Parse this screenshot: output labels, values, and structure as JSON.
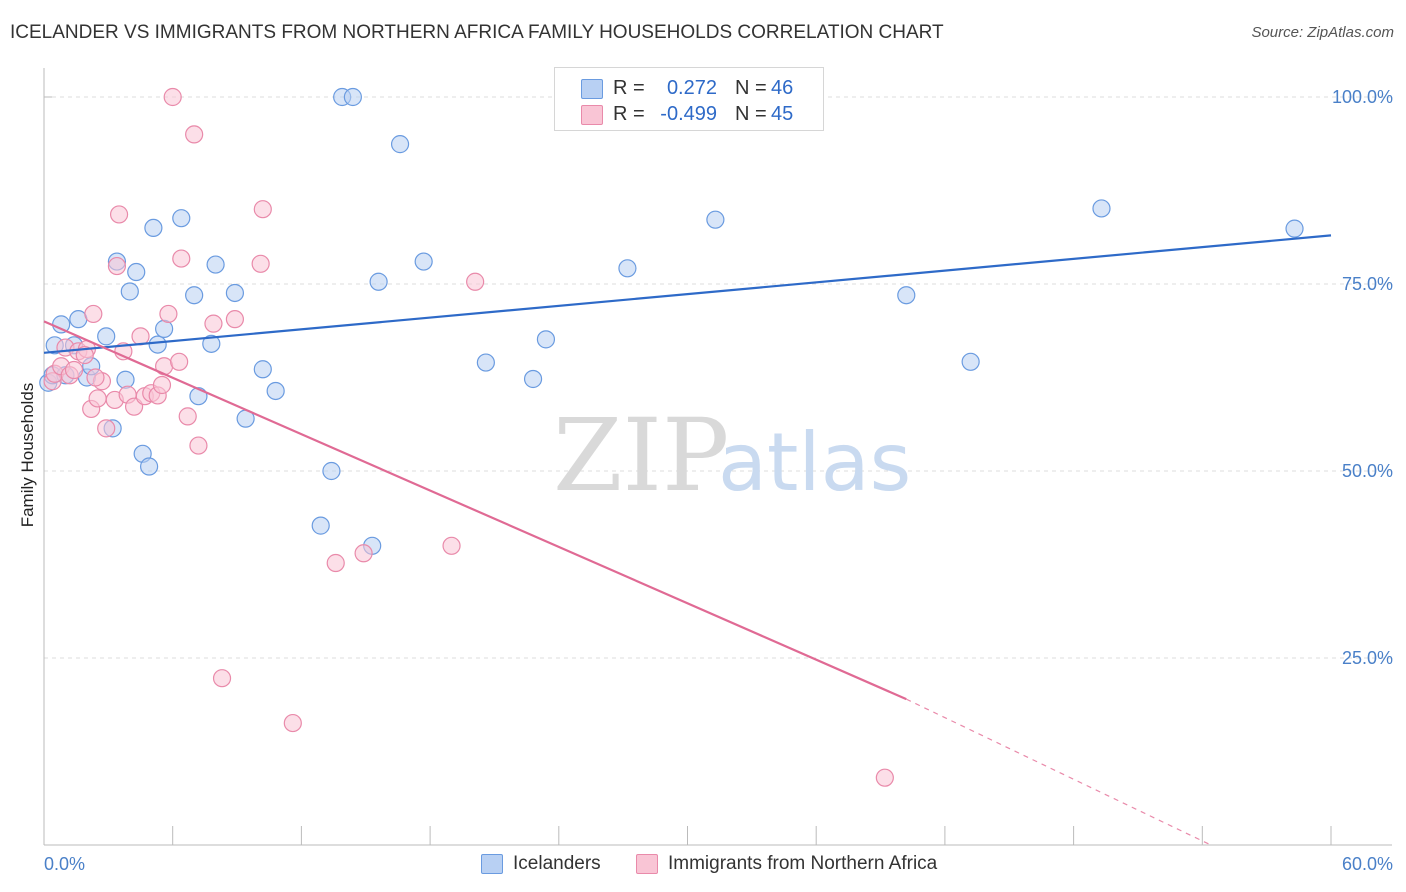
{
  "title": "ICELANDER VS IMMIGRANTS FROM NORTHERN AFRICA FAMILY HOUSEHOLDS CORRELATION CHART",
  "source": "Source: ZipAtlas.com",
  "watermark": {
    "zip": "ZIP",
    "atlas": "atlas"
  },
  "legend": {
    "rows": [
      {
        "r_label": "R =",
        "r_value": "0.272",
        "n_label": "N =",
        "n_value": "46",
        "fill": "#b8d0f3",
        "stroke": "#6a9be0"
      },
      {
        "r_label": "R =",
        "r_value": "-0.499",
        "n_label": "N =",
        "n_value": "45",
        "fill": "#f9c5d5",
        "stroke": "#e98aaa"
      }
    ]
  },
  "bottom_legend": [
    {
      "label": "Icelanders",
      "fill": "#b8d0f3",
      "stroke": "#6a9be0"
    },
    {
      "label": "Immigrants from Northern Africa",
      "fill": "#f9c5d5",
      "stroke": "#e98aaa"
    }
  ],
  "chart_data": {
    "type": "scatter",
    "title": "ICELANDER VS IMMIGRANTS FROM NORTHERN AFRICA FAMILY HOUSEHOLDS CORRELATION CHART",
    "xlabel": "",
    "ylabel": "Family Households",
    "xlim": [
      0,
      60
    ],
    "ylim": [
      0,
      100
    ],
    "x_tick_labels": [
      "0.0%",
      "60.0%"
    ],
    "y_ticks": [
      25,
      50,
      75,
      100
    ],
    "y_tick_labels": [
      "25.0%",
      "50.0%",
      "75.0%",
      "100.0%"
    ],
    "grid": "horizontal dashed",
    "series": [
      {
        "name": "Icelanders",
        "color": "#6a9be0",
        "fill": "#b8d0f3",
        "trend": {
          "x0": 0,
          "y0": 65.8,
          "x1": 60,
          "y1": 81.5
        },
        "points": [
          [
            0.2,
            61.8
          ],
          [
            0.4,
            62.8
          ],
          [
            0.5,
            66.8
          ],
          [
            0.8,
            69.6
          ],
          [
            1.0,
            62.8
          ],
          [
            1.4,
            66.8
          ],
          [
            1.6,
            70.3
          ],
          [
            2.0,
            62.5
          ],
          [
            2.2,
            64.0
          ],
          [
            2.9,
            68.0
          ],
          [
            3.2,
            55.7
          ],
          [
            3.4,
            78.0
          ],
          [
            3.8,
            62.2
          ],
          [
            4.0,
            74.0
          ],
          [
            4.3,
            76.6
          ],
          [
            4.6,
            52.3
          ],
          [
            4.9,
            50.6
          ],
          [
            5.1,
            82.5
          ],
          [
            5.3,
            66.9
          ],
          [
            5.6,
            69.0
          ],
          [
            6.4,
            83.8
          ],
          [
            7.0,
            73.5
          ],
          [
            7.2,
            60.0
          ],
          [
            7.8,
            67.0
          ],
          [
            8.0,
            77.6
          ],
          [
            8.9,
            73.8
          ],
          [
            9.4,
            57.0
          ],
          [
            10.2,
            63.6
          ],
          [
            10.8,
            60.7
          ],
          [
            12.9,
            42.7
          ],
          [
            13.4,
            50.0
          ],
          [
            13.9,
            100.0
          ],
          [
            14.4,
            100.0
          ],
          [
            15.3,
            40.0
          ],
          [
            15.6,
            75.3
          ],
          [
            16.6,
            93.7
          ],
          [
            17.7,
            78.0
          ],
          [
            20.6,
            64.5
          ],
          [
            22.8,
            62.3
          ],
          [
            23.4,
            67.6
          ],
          [
            27.2,
            77.1
          ],
          [
            31.3,
            83.6
          ],
          [
            40.2,
            73.5
          ],
          [
            43.2,
            64.6
          ],
          [
            49.3,
            85.1
          ],
          [
            58.3,
            82.4
          ]
        ]
      },
      {
        "name": "Immigrants from Northern Africa",
        "color": "#e98aaa",
        "fill": "#f9c5d5",
        "trend": {
          "x0": 0,
          "y0": 70.0,
          "x1": 40.2,
          "y1": 19.5,
          "dash_x1": 54.4,
          "dash_y1": 0
        },
        "points": [
          [
            0.4,
            62.0
          ],
          [
            0.5,
            63.0
          ],
          [
            0.8,
            64.0
          ],
          [
            1.0,
            66.5
          ],
          [
            1.2,
            62.8
          ],
          [
            1.4,
            63.5
          ],
          [
            1.6,
            66.0
          ],
          [
            2.0,
            66.3
          ],
          [
            2.2,
            58.3
          ],
          [
            2.3,
            71.0
          ],
          [
            2.5,
            59.7
          ],
          [
            2.7,
            62.0
          ],
          [
            2.9,
            55.7
          ],
          [
            3.3,
            59.5
          ],
          [
            3.4,
            77.4
          ],
          [
            3.5,
            84.3
          ],
          [
            3.7,
            66.0
          ],
          [
            3.9,
            60.2
          ],
          [
            4.2,
            58.6
          ],
          [
            4.5,
            68.0
          ],
          [
            4.7,
            60.0
          ],
          [
            5.0,
            60.4
          ],
          [
            5.3,
            60.1
          ],
          [
            5.5,
            61.5
          ],
          [
            5.6,
            64.0
          ],
          [
            5.8,
            71.0
          ],
          [
            6.0,
            100.0
          ],
          [
            6.3,
            64.6
          ],
          [
            6.4,
            78.4
          ],
          [
            6.7,
            57.3
          ],
          [
            7.0,
            95.0
          ],
          [
            7.2,
            53.4
          ],
          [
            7.9,
            69.7
          ],
          [
            8.3,
            22.3
          ],
          [
            8.9,
            70.3
          ],
          [
            10.1,
            77.7
          ],
          [
            10.2,
            85.0
          ],
          [
            11.6,
            16.3
          ],
          [
            13.6,
            37.7
          ],
          [
            14.9,
            39.0
          ],
          [
            20.1,
            75.3
          ],
          [
            19.0,
            40.0
          ],
          [
            39.2,
            9.0
          ],
          [
            2.4,
            62.5
          ],
          [
            1.9,
            65.5
          ]
        ]
      }
    ]
  }
}
